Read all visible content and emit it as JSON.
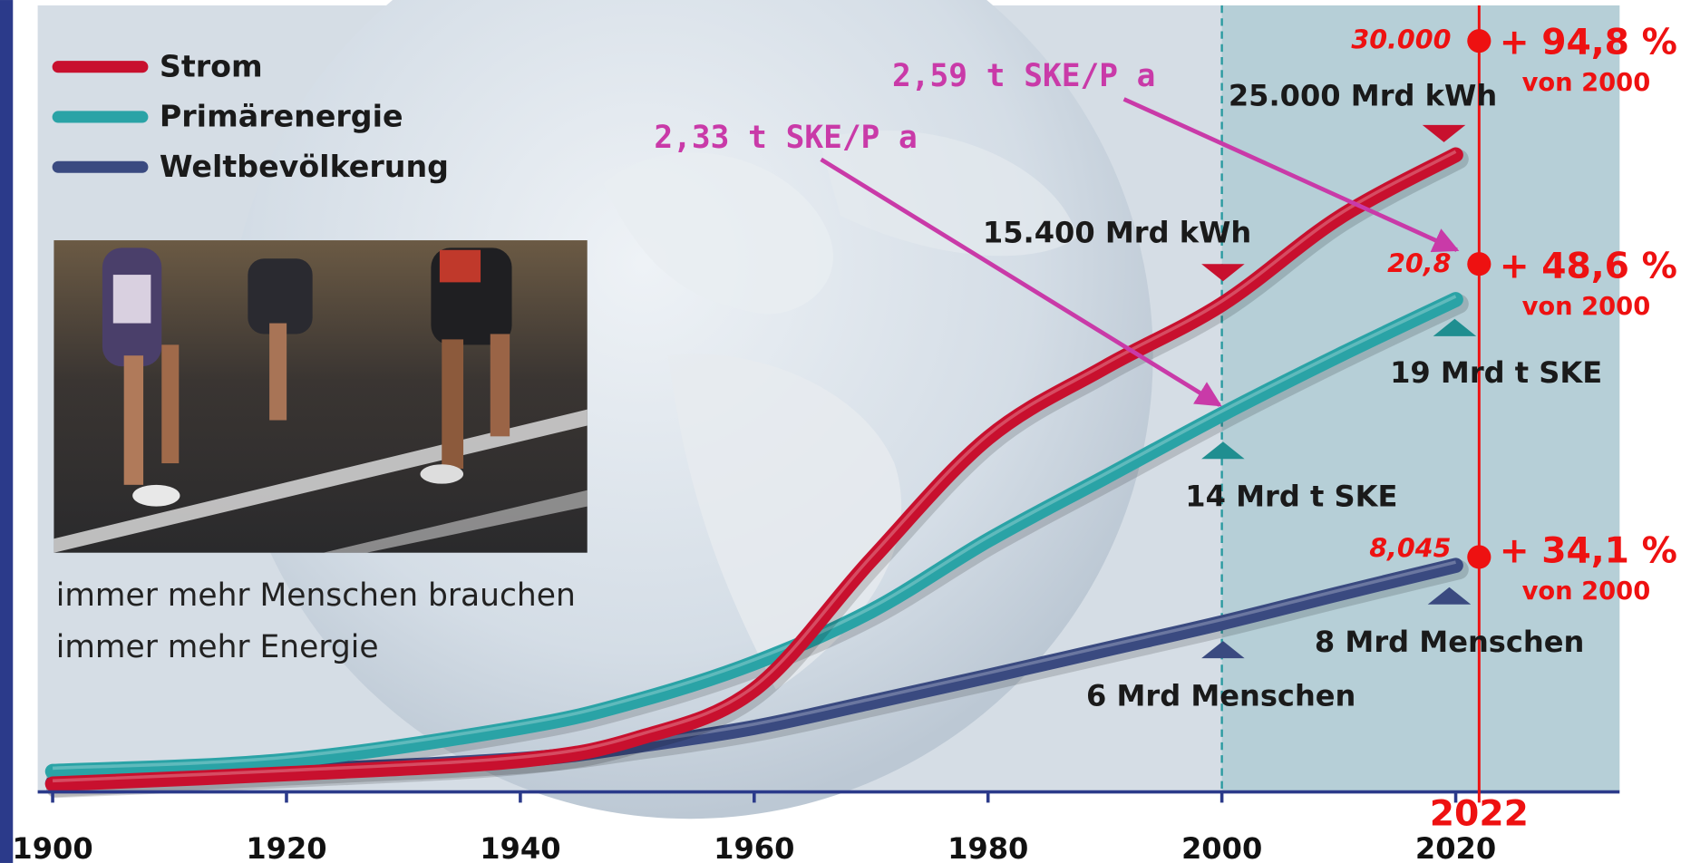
{
  "chart_data": {
    "type": "line",
    "x": [
      1900,
      1920,
      1940,
      1950,
      1960,
      1970,
      1980,
      1990,
      2000,
      2010,
      2020
    ],
    "xlim": [
      1899,
      2033
    ],
    "ylim": [
      0,
      100
    ],
    "xticks": [
      1900,
      1920,
      1940,
      1960,
      1980,
      2000,
      2020
    ],
    "series": [
      {
        "name": "Strom",
        "color": "#c8102e",
        "values": [
          1,
          2.3,
          4,
          6.8,
          13,
          29.5,
          45,
          54,
          62,
          73,
          81
        ]
      },
      {
        "name": "Primärenergie",
        "color": "#2aa3a6",
        "values": [
          2.6,
          4,
          8.2,
          11.6,
          16.4,
          23,
          32,
          40,
          48,
          55.5,
          62.6
        ]
      },
      {
        "name": "Weltbevölkerung",
        "color": "#3a4a80",
        "values": [
          1.1,
          2.6,
          4.1,
          5.9,
          8.2,
          11.4,
          14.7,
          18.1,
          21.5,
          25.2,
          28.8
        ]
      }
    ],
    "legend": "top-left",
    "marker_year": 2022,
    "reference_year": 2000,
    "annotations": [
      "2,59 t SKE/P a",
      "2,33 t SKE/P a",
      "25.000 Mrd kWh",
      "15.400 Mrd kWh",
      "19 Mrd t SKE",
      "14 Mrd t SKE",
      "8 Mrd Menschen",
      "6 Mrd Menschen"
    ],
    "end_labels": [
      {
        "value": "30.000",
        "change": "+ 94,8 %",
        "note": "von 2000"
      },
      {
        "value": "20,8",
        "change": "+ 48,6 %",
        "note": "von 2000"
      },
      {
        "value": "8,045",
        "change": "+ 34,1 %",
        "note": "von 2000"
      }
    ],
    "caption": [
      "immer mehr Menschen brauchen",
      "immer mehr Energie"
    ]
  }
}
